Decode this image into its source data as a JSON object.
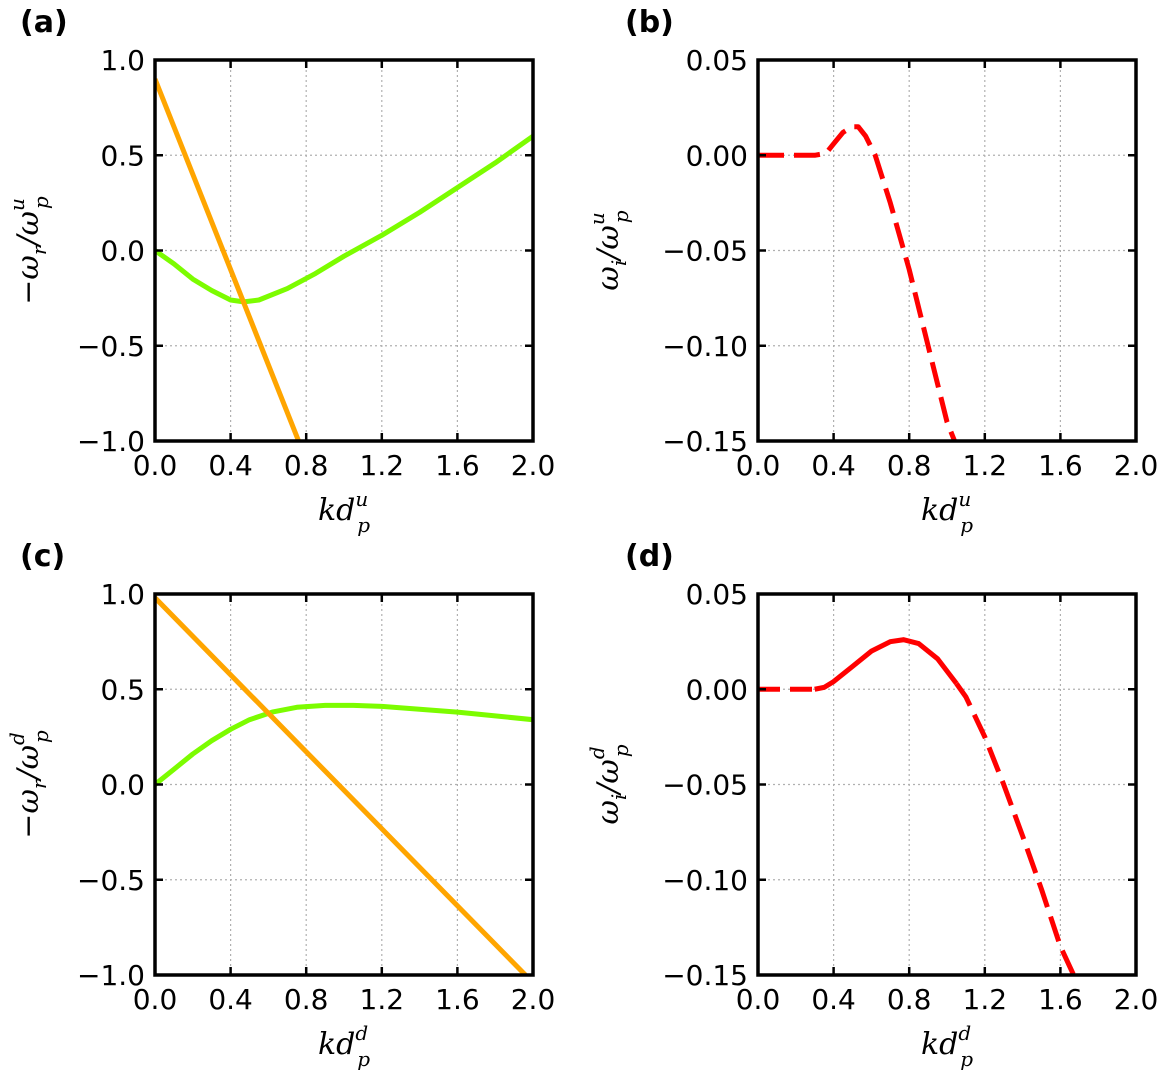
{
  "chart_data": [
    {
      "panel": "(a)",
      "type": "line",
      "xlim": [
        0.0,
        2.0
      ],
      "ylim": [
        -1.0,
        1.0
      ],
      "xticks": [
        "0.0",
        "0.4",
        "0.8",
        "1.2",
        "1.6",
        "2.0"
      ],
      "yticks": [
        "1.0",
        "0.5",
        "0.0",
        "−0.5",
        "−1.0"
      ],
      "xticks_values": [
        0.0,
        0.4,
        0.8,
        1.2,
        1.6,
        2.0
      ],
      "yticks_values": [
        1.0,
        0.5,
        0.0,
        -0.5,
        -1.0
      ],
      "xlabel": {
        "main": "kd",
        "sub": "p",
        "sup": "u"
      },
      "ylabel": {
        "prefix": "−ω",
        "sub1": "r",
        "mid": "/ω",
        "sub2": "p",
        "sup2": "u"
      },
      "grid": true,
      "series": [
        {
          "name": "green",
          "color": "#7cfc00",
          "style": "solid",
          "x": [
            0.0,
            0.1,
            0.2,
            0.3,
            0.4,
            0.47,
            0.55,
            0.7,
            0.85,
            1.0,
            1.2,
            1.4,
            1.6,
            1.8,
            2.0
          ],
          "y": [
            0.0,
            -0.07,
            -0.15,
            -0.21,
            -0.26,
            -0.27,
            -0.26,
            -0.2,
            -0.12,
            -0.03,
            0.08,
            0.2,
            0.33,
            0.46,
            0.6
          ]
        },
        {
          "name": "orange",
          "color": "#ffa500",
          "style": "solid",
          "x": [
            0.0,
            0.76
          ],
          "y": [
            0.9,
            -1.0
          ]
        }
      ]
    },
    {
      "panel": "(b)",
      "type": "line",
      "xlim": [
        0.0,
        2.0
      ],
      "ylim": [
        -0.15,
        0.05
      ],
      "xticks": [
        "0.0",
        "0.4",
        "0.8",
        "1.2",
        "1.6",
        "2.0"
      ],
      "yticks": [
        "0.05",
        "0.00",
        "−0.05",
        "−0.10",
        "−0.15"
      ],
      "xticks_values": [
        0.0,
        0.4,
        0.8,
        1.2,
        1.6,
        2.0
      ],
      "yticks_values": [
        0.05,
        0.0,
        -0.05,
        -0.1,
        -0.15
      ],
      "xlabel": {
        "main": "kd",
        "sub": "p",
        "sup": "u"
      },
      "ylabel": {
        "prefix": "ω",
        "sub1": "i",
        "mid": "/ω",
        "sub2": "p",
        "sup2": "u"
      },
      "grid": true,
      "series": [
        {
          "name": "red-dashed",
          "color": "#ff0000",
          "style": "dashed",
          "x": [
            0.0,
            0.3,
            0.36,
            0.4,
            0.45,
            0.5,
            0.53,
            0.57,
            0.62,
            0.7,
            0.8,
            0.9,
            1.0,
            1.04
          ],
          "y": [
            0.0,
            0.0,
            0.001,
            0.006,
            0.012,
            0.015,
            0.015,
            0.01,
            0.0,
            -0.025,
            -0.06,
            -0.1,
            -0.14,
            -0.15
          ]
        }
      ]
    },
    {
      "panel": "(c)",
      "type": "line",
      "xlim": [
        0.0,
        2.0
      ],
      "ylim": [
        -1.0,
        1.0
      ],
      "xticks": [
        "0.0",
        "0.4",
        "0.8",
        "1.2",
        "1.6",
        "2.0"
      ],
      "yticks": [
        "1.0",
        "0.5",
        "0.0",
        "−0.5",
        "−1.0"
      ],
      "xticks_values": [
        0.0,
        0.4,
        0.8,
        1.2,
        1.6,
        2.0
      ],
      "yticks_values": [
        1.0,
        0.5,
        0.0,
        -0.5,
        -1.0
      ],
      "xlabel": {
        "main": "kd",
        "sub": "p",
        "sup": "d"
      },
      "ylabel": {
        "prefix": "−ω",
        "sub1": "r",
        "mid": "/ω",
        "sub2": "p",
        "sup2": "d"
      },
      "grid": true,
      "series": [
        {
          "name": "green",
          "color": "#7cfc00",
          "style": "solid",
          "x": [
            0.0,
            0.1,
            0.2,
            0.3,
            0.4,
            0.5,
            0.62,
            0.75,
            0.9,
            1.05,
            1.2,
            1.4,
            1.6,
            1.8,
            2.0
          ],
          "y": [
            0.0,
            0.08,
            0.16,
            0.23,
            0.29,
            0.34,
            0.38,
            0.405,
            0.415,
            0.415,
            0.41,
            0.395,
            0.38,
            0.36,
            0.34
          ]
        },
        {
          "name": "orange",
          "color": "#ffa500",
          "style": "solid",
          "x": [
            0.0,
            1.96
          ],
          "y": [
            0.98,
            -1.0
          ]
        }
      ]
    },
    {
      "panel": "(d)",
      "type": "line",
      "xlim": [
        0.0,
        2.0
      ],
      "ylim": [
        -0.15,
        0.05
      ],
      "xticks": [
        "0.0",
        "0.4",
        "0.8",
        "1.2",
        "1.6",
        "2.0"
      ],
      "yticks": [
        "0.05",
        "0.00",
        "−0.05",
        "−0.10",
        "−0.15"
      ],
      "xticks_values": [
        0.0,
        0.4,
        0.8,
        1.2,
        1.6,
        2.0
      ],
      "yticks_values": [
        0.05,
        0.0,
        -0.05,
        -0.1,
        -0.15
      ],
      "xlabel": {
        "main": "kd",
        "sub": "p",
        "sup": "d"
      },
      "ylabel": {
        "prefix": "ω",
        "sub1": "i",
        "mid": "/ω",
        "sub2": "p",
        "sup2": "d"
      },
      "grid": true,
      "series": [
        {
          "name": "red",
          "color": "#ff0000",
          "style": "solid-then-dashed",
          "dash_start_x": 1.08,
          "x": [
            0.0,
            0.3,
            0.35,
            0.4,
            0.5,
            0.6,
            0.7,
            0.77,
            0.85,
            0.95,
            1.05,
            1.1,
            1.2,
            1.3,
            1.4,
            1.5,
            1.6,
            1.67
          ],
          "y": [
            0.0,
            0.0,
            0.001,
            0.004,
            0.012,
            0.02,
            0.025,
            0.026,
            0.024,
            0.016,
            0.003,
            -0.004,
            -0.025,
            -0.05,
            -0.077,
            -0.105,
            -0.135,
            -0.15
          ]
        }
      ]
    }
  ]
}
